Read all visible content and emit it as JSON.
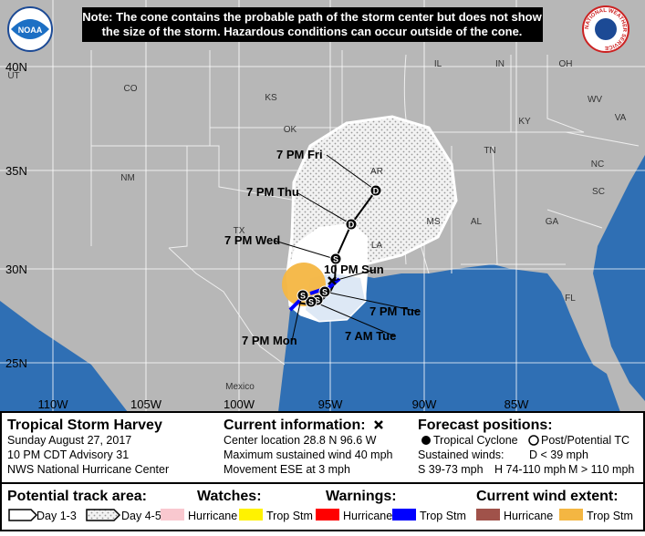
{
  "note_lines": [
    "Note: The cone contains the probable path of the storm center but does not show",
    "the size of the storm. Hazardous conditions can occur outside of the cone."
  ],
  "logos": {
    "noaa": "NOAA",
    "nws": "NATIONAL WEATHER SERVICE"
  },
  "map": {
    "lat_labels": [
      "40N",
      "35N",
      "30N",
      "25N"
    ],
    "lon_labels": [
      "110W",
      "105W",
      "100W",
      "95W",
      "90W",
      "85W"
    ],
    "place_labels": [
      "UT",
      "CO",
      "KS",
      "NM",
      "TX",
      "OK",
      "AR",
      "LA",
      "MS",
      "AL",
      "GA",
      "TN",
      "KY",
      "IL",
      "IN",
      "OH",
      "WV",
      "VA",
      "NC",
      "SC",
      "FL",
      "Mexico"
    ]
  },
  "forecast": {
    "times": [
      "7 PM Fri",
      "7 PM Thu",
      "7 PM Wed",
      "10 PM Sun",
      "7 PM Tue",
      "7 AM Tue",
      "7 PM Mon"
    ],
    "markers": [
      "D",
      "D",
      "S",
      "S",
      "S",
      "S",
      "S"
    ]
  },
  "panel": {
    "storm": {
      "name": "Tropical Storm Harvey",
      "lines": [
        "Sunday August 27, 2017",
        "10 PM CDT Advisory 31",
        "NWS National Hurricane Center"
      ]
    },
    "current": {
      "title": "Current information:",
      "lines": [
        "Center location 28.8 N 96.6 W",
        "Maximum sustained wind 40 mph",
        "Movement ESE at 3 mph"
      ]
    },
    "forecast": {
      "title": "Forecast positions:",
      "tropical": "Tropical Cyclone",
      "post": "Post/Potential TC",
      "winds_title": "Sustained winds:",
      "d": "D < 39 mph",
      "s": "S 39-73 mph",
      "h": "H 74-110 mph",
      "m": "M > 110 mph"
    },
    "track": {
      "title": "Potential track area:",
      "day13": "Day 1-3",
      "day45": "Day 4-5"
    },
    "watches": {
      "title": "Watches:",
      "hurricane": "Hurricane",
      "trop": "Trop Stm"
    },
    "warnings": {
      "title": "Warnings:",
      "hurricane": "Hurricane",
      "trop": "Trop Stm"
    },
    "wind": {
      "title": "Current wind extent:",
      "hurricane": "Hurricane",
      "trop": "Trop Stm"
    }
  }
}
